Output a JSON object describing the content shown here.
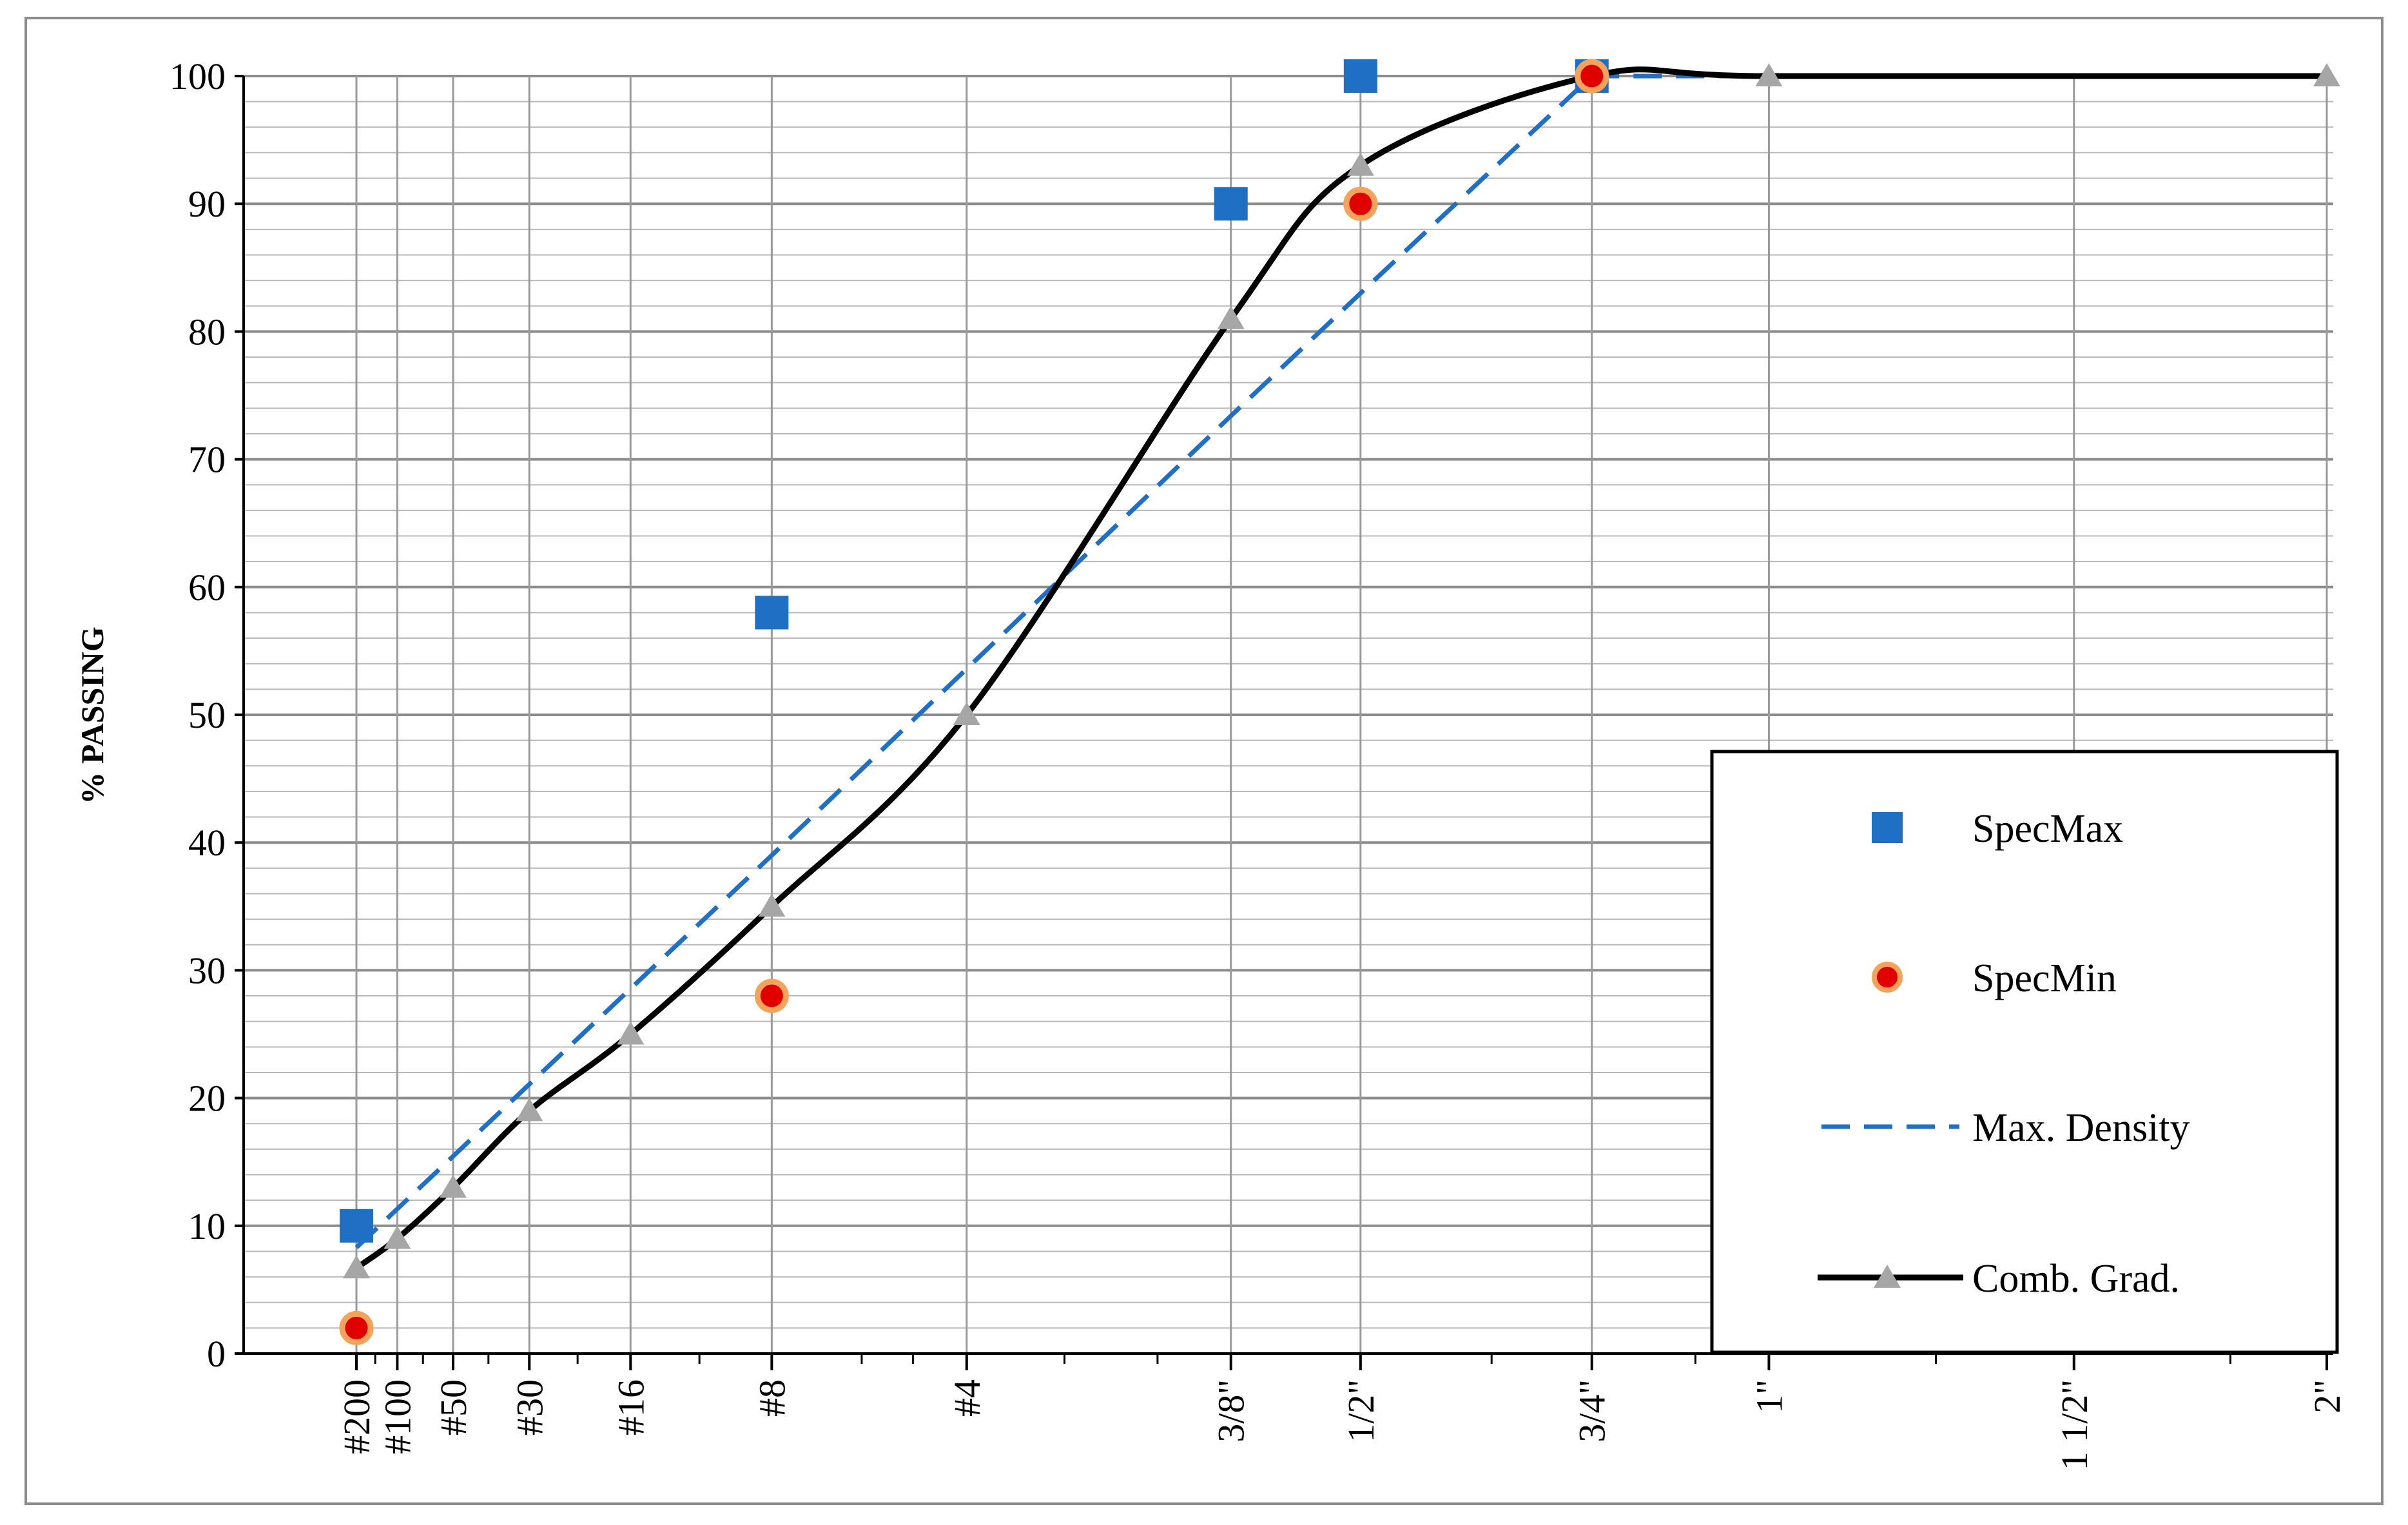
{
  "chart_data": {
    "type": "line",
    "title": "",
    "xlabel": "",
    "ylabel": "% PASSING",
    "ylim": [
      0,
      100
    ],
    "xscale": "sieve size ^ 0.45 (power-45 gradation chart)",
    "grid": true,
    "legend_placement": "bottom-right",
    "sieves": [
      {
        "label": "#200",
        "size_mm": 0.075
      },
      {
        "label": "#100",
        "size_mm": 0.15
      },
      {
        "label": "#50",
        "size_mm": 0.3
      },
      {
        "label": "#30",
        "size_mm": 0.6
      },
      {
        "label": "#16",
        "size_mm": 1.18
      },
      {
        "label": "#8",
        "size_mm": 2.36
      },
      {
        "label": "#4",
        "size_mm": 4.75
      },
      {
        "label": "3/8\"",
        "size_mm": 9.5
      },
      {
        "label": "1/2\"",
        "size_mm": 12.5
      },
      {
        "label": "3/4\"",
        "size_mm": 19.0
      },
      {
        "label": "1\"",
        "size_mm": 25.0
      },
      {
        "label": "1 1/2\"",
        "size_mm": 37.5
      },
      {
        "label": "2\"",
        "size_mm": 50.0
      }
    ],
    "series": [
      {
        "name": "SpecMax",
        "style": "square-marker",
        "color": "#1f6fc5",
        "points": [
          {
            "x": 0.075,
            "y": 10
          },
          {
            "x": 2.36,
            "y": 58
          },
          {
            "x": 9.5,
            "y": 90
          },
          {
            "x": 12.5,
            "y": 100
          },
          {
            "x": 19.0,
            "y": 100
          }
        ]
      },
      {
        "name": "SpecMin",
        "style": "circle-marker",
        "color": "#e00000",
        "edge_color": "#f5a25a",
        "points": [
          {
            "x": 0.075,
            "y": 2
          },
          {
            "x": 2.36,
            "y": 28
          },
          {
            "x": 12.5,
            "y": 90
          },
          {
            "x": 19.0,
            "y": 100
          }
        ]
      },
      {
        "name": "Max. Density",
        "style": "dashed-line",
        "color": "#1f6fc5",
        "points": [
          {
            "x": 0.075,
            "y": 8.3
          },
          {
            "x": 2.36,
            "y": 39.0
          },
          {
            "x": 4.75,
            "y": 53.6
          },
          {
            "x": 9.5,
            "y": 73.4
          },
          {
            "x": 12.5,
            "y": 83.0
          },
          {
            "x": 19.0,
            "y": 100
          },
          {
            "x": 50.0,
            "y": 100
          }
        ]
      },
      {
        "name": "Comb. Grad.",
        "style": "solid-line-triangle",
        "color": "#000000",
        "marker_color": "#a6a6a6",
        "points": [
          {
            "x": 0.075,
            "y": 6.7
          },
          {
            "x": 0.15,
            "y": 9
          },
          {
            "x": 0.3,
            "y": 13
          },
          {
            "x": 0.6,
            "y": 19
          },
          {
            "x": 1.18,
            "y": 25
          },
          {
            "x": 2.36,
            "y": 35
          },
          {
            "x": 4.75,
            "y": 50
          },
          {
            "x": 9.5,
            "y": 81
          },
          {
            "x": 12.5,
            "y": 93
          },
          {
            "x": 19.0,
            "y": 100
          },
          {
            "x": 25.0,
            "y": 100
          },
          {
            "x": 50.0,
            "y": 100
          }
        ]
      }
    ],
    "yticks": [
      0,
      10,
      20,
      30,
      40,
      50,
      60,
      70,
      80,
      90,
      100
    ]
  },
  "legend": {
    "items": [
      {
        "label": "SpecMax",
        "symbol": "square"
      },
      {
        "label": "SpecMin",
        "symbol": "circle"
      },
      {
        "label": "Max. Density",
        "symbol": "dash"
      },
      {
        "label": "Comb. Grad.",
        "symbol": "line-triangle"
      }
    ]
  }
}
